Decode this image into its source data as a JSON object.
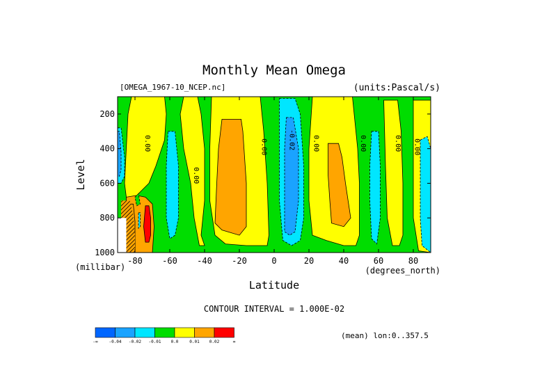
{
  "chart_data": {
    "type": "heatmap",
    "title": "Monthly Mean Omega",
    "dataset_label": "[OMEGA_1967-10_NCEP.nc]",
    "units_label": "(units:Pascal/s)",
    "xlabel": "Latitude",
    "x_units": "(degrees_north)",
    "ylabel": "Level",
    "y_units": "(millibar)",
    "xlim": [
      -90,
      90
    ],
    "ylim": [
      1000,
      100
    ],
    "x_ticks": [
      -80,
      -60,
      -40,
      -20,
      0,
      20,
      40,
      60,
      80
    ],
    "x_tick_labels": [
      "-80",
      "-60",
      "-40",
      "-20",
      "0",
      "20",
      "40",
      "60",
      "80"
    ],
    "y_ticks": [
      200,
      400,
      600,
      800,
      1000
    ],
    "y_tick_labels": [
      "200",
      "400",
      "600",
      "800",
      "1000"
    ],
    "contour_interval_text": "CONTOUR INTERVAL = 1.000E-02",
    "mean_text": "(mean) lon:0..357.5",
    "colorbar": {
      "colors": [
        "#0066ff",
        "#1aa3ff",
        "#00e6ff",
        "#00dd00",
        "#ffff00",
        "#ffa500",
        "#ff0000"
      ],
      "labels": [
        "-∞",
        "-0.04",
        "-0.02",
        "-0.01",
        "0.0",
        "0.01",
        "0.02",
        "∞"
      ]
    },
    "contour_labels": [
      {
        "text": "0.00",
        "lat": -74,
        "lev": 370
      },
      {
        "text": "0.00",
        "lat": -46,
        "lev": 555
      },
      {
        "text": "0.00",
        "lat": -7,
        "lev": 390
      },
      {
        "text": "-0.02",
        "lat": 9,
        "lev": 350
      },
      {
        "text": "0.00",
        "lat": 23,
        "lev": 370
      },
      {
        "text": "0.00",
        "lat": 50,
        "lev": 370
      },
      {
        "text": "0.00",
        "lat": 70,
        "lev": 370
      },
      {
        "text": "0.00",
        "lat": 81,
        "lev": 390
      }
    ],
    "regions": [
      {
        "value": -0.005,
        "color": "#00dd00",
        "poly": [
          [
            -90,
            100
          ],
          [
            90,
            100
          ],
          [
            90,
            1000
          ],
          [
            -90,
            1000
          ]
        ]
      },
      {
        "value": 0.005,
        "color": "#ffff00",
        "poly": [
          [
            -82,
            100
          ],
          [
            -63,
            100
          ],
          [
            -62,
            200
          ],
          [
            -63,
            350
          ],
          [
            -68,
            500
          ],
          [
            -72,
            600
          ],
          [
            -80,
            680
          ],
          [
            -85,
            680
          ],
          [
            -86,
            600
          ],
          [
            -85,
            400
          ],
          [
            -84,
            200
          ]
        ]
      },
      {
        "value": 0.005,
        "color": "#ffff00",
        "poly": [
          [
            -52,
            100
          ],
          [
            -44,
            100
          ],
          [
            -42,
            200
          ],
          [
            -40,
            400
          ],
          [
            -40,
            700
          ],
          [
            -42,
            900
          ],
          [
            -40,
            960
          ],
          [
            -43,
            960
          ],
          [
            -46,
            800
          ],
          [
            -48,
            600
          ],
          [
            -52,
            400
          ],
          [
            -54,
            200
          ]
        ]
      },
      {
        "value": 0.005,
        "color": "#ffff00",
        "poly": [
          [
            -36,
            100
          ],
          [
            -8,
            100
          ],
          [
            -6,
            300
          ],
          [
            -4,
            600
          ],
          [
            -3,
            900
          ],
          [
            -4,
            960
          ],
          [
            -16,
            960
          ],
          [
            -28,
            950
          ],
          [
            -34,
            900
          ],
          [
            -37,
            700
          ],
          [
            -37,
            400
          ]
        ]
      },
      {
        "value": 0.005,
        "color": "#ffff00",
        "poly": [
          [
            22,
            100
          ],
          [
            45,
            100
          ],
          [
            46,
            200
          ],
          [
            48,
            400
          ],
          [
            49,
            600
          ],
          [
            49,
            900
          ],
          [
            47,
            960
          ],
          [
            40,
            960
          ],
          [
            30,
            930
          ],
          [
            22,
            900
          ],
          [
            20,
            700
          ],
          [
            20,
            400
          ]
        ]
      },
      {
        "value": 0.005,
        "color": "#ffff00",
        "poly": [
          [
            63,
            120
          ],
          [
            71,
            120
          ],
          [
            73,
            300
          ],
          [
            74,
            600
          ],
          [
            74,
            900
          ],
          [
            72,
            960
          ],
          [
            68,
            960
          ],
          [
            65,
            800
          ],
          [
            64,
            500
          ]
        ]
      },
      {
        "value": 0.005,
        "color": "#ffff00",
        "poly": [
          [
            80,
            120
          ],
          [
            90,
            120
          ],
          [
            90,
            1000
          ],
          [
            83,
            990
          ],
          [
            80,
            800
          ],
          [
            80,
            500
          ]
        ]
      },
      {
        "value": -0.015,
        "color": "#00e6ff",
        "poly": [
          [
            -90,
            280
          ],
          [
            -88,
            280
          ],
          [
            -86,
            450
          ],
          [
            -86,
            560
          ],
          [
            -88,
            600
          ],
          [
            -90,
            600
          ]
        ]
      },
      {
        "value": -0.015,
        "color": "#00e6ff",
        "poly": [
          [
            -61,
            300
          ],
          [
            -57,
            300
          ],
          [
            -55,
            500
          ],
          [
            -55,
            800
          ],
          [
            -57,
            900
          ],
          [
            -60,
            920
          ],
          [
            -62,
            800
          ],
          [
            -62,
            500
          ]
        ]
      },
      {
        "value": -0.015,
        "color": "#00e6ff",
        "poly": [
          [
            3,
            110
          ],
          [
            12,
            110
          ],
          [
            15,
            200
          ],
          [
            17,
            500
          ],
          [
            17,
            800
          ],
          [
            15,
            930
          ],
          [
            10,
            960
          ],
          [
            5,
            930
          ],
          [
            3,
            700
          ],
          [
            3,
            400
          ]
        ]
      },
      {
        "value": -0.015,
        "color": "#00e6ff",
        "poly": [
          [
            56,
            300
          ],
          [
            60,
            300
          ],
          [
            61,
            500
          ],
          [
            61,
            800
          ],
          [
            59,
            950
          ],
          [
            56,
            920
          ],
          [
            55,
            700
          ],
          [
            55,
            500
          ]
        ]
      },
      {
        "value": -0.015,
        "color": "#00e6ff",
        "poly": [
          [
            84,
            350
          ],
          [
            88,
            330
          ],
          [
            90,
            400
          ],
          [
            90,
            1000
          ],
          [
            85,
            960
          ],
          [
            84,
            800
          ],
          [
            84,
            500
          ]
        ]
      },
      {
        "value": 0.015,
        "color": "#ffa500",
        "poly": [
          [
            -30,
            230
          ],
          [
            -19,
            230
          ],
          [
            -18,
            300
          ],
          [
            -16,
            600
          ],
          [
            -16,
            850
          ],
          [
            -20,
            900
          ],
          [
            -30,
            870
          ],
          [
            -34,
            830
          ],
          [
            -33,
            600
          ],
          [
            -32,
            400
          ]
        ]
      },
      {
        "value": 0.015,
        "color": "#ffa500",
        "poly": [
          [
            31,
            370
          ],
          [
            37,
            370
          ],
          [
            39,
            450
          ],
          [
            41,
            600
          ],
          [
            44,
            800
          ],
          [
            40,
            850
          ],
          [
            33,
            830
          ],
          [
            32,
            700
          ],
          [
            31,
            550
          ]
        ]
      },
      {
        "value": 0.015,
        "color": "#ffa500",
        "poly": [
          [
            -85,
            680
          ],
          [
            -79,
            670
          ],
          [
            -74,
            680
          ],
          [
            -70,
            720
          ],
          [
            -69,
            850
          ],
          [
            -70,
            1000
          ],
          [
            -85,
            1000
          ]
        ]
      },
      {
        "value": -0.03,
        "color": "#1aa3ff",
        "poly": [
          [
            7,
            220
          ],
          [
            11,
            220
          ],
          [
            14,
            400
          ],
          [
            14,
            700
          ],
          [
            12,
            880
          ],
          [
            9,
            900
          ],
          [
            6,
            880
          ],
          [
            6,
            600
          ],
          [
            6,
            400
          ]
        ]
      },
      {
        "value": -0.03,
        "color": "#1aa3ff",
        "poly": [
          [
            -90,
            300
          ],
          [
            -89,
            300
          ],
          [
            -88,
            420
          ],
          [
            -88,
            520
          ],
          [
            -89,
            560
          ],
          [
            -90,
            560
          ]
        ]
      },
      {
        "value": 0.025,
        "color": "#ff0000",
        "poly": [
          [
            -74,
            730
          ],
          [
            -72,
            730
          ],
          [
            -71,
            800
          ],
          [
            -71,
            900
          ],
          [
            -72,
            940
          ],
          [
            -74,
            940
          ],
          [
            -75,
            850
          ]
        ]
      },
      {
        "value": -0.015,
        "color": "#00e6ff",
        "poly": [
          [
            -78,
            770
          ],
          [
            -77,
            770
          ],
          [
            -77,
            850
          ],
          [
            -78,
            860
          ]
        ]
      },
      {
        "value": 0.015,
        "color": "#ffa500",
        "poly": [
          [
            -84,
            720
          ],
          [
            -81,
            720
          ],
          [
            -80,
            820
          ],
          [
            -80,
            1000
          ],
          [
            -84,
            1000
          ]
        ]
      },
      {
        "value": 0.025,
        "color": "#ff0000",
        "poly": [
          [
            -83,
            880
          ],
          [
            -81,
            880
          ],
          [
            -80,
            940
          ],
          [
            -80,
            1000
          ],
          [
            -83,
            1000
          ]
        ]
      },
      {
        "value": -0.005,
        "color": "#00dd00",
        "poly": [
          [
            -80,
            680
          ],
          [
            -78,
            660
          ],
          [
            -77,
            720
          ],
          [
            -79,
            730
          ]
        ]
      }
    ],
    "hatched_region": {
      "poly": [
        [
          -88,
          700
        ],
        [
          -83,
          700
        ],
        [
          -81,
          780
        ],
        [
          -80,
          900
        ],
        [
          -80,
          1000
        ],
        [
          -88,
          1000
        ]
      ]
    },
    "blank_region": {
      "poly": [
        [
          -90,
          800
        ],
        [
          -85,
          800
        ],
        [
          -85,
          1000
        ],
        [
          -90,
          1000
        ]
      ]
    }
  }
}
